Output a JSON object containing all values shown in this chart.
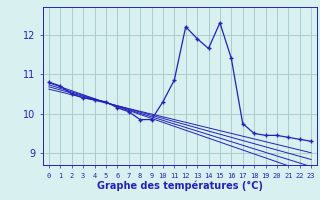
{
  "x": [
    0,
    1,
    2,
    3,
    4,
    5,
    6,
    7,
    8,
    9,
    10,
    11,
    12,
    13,
    14,
    15,
    16,
    17,
    18,
    19,
    20,
    21,
    22,
    23
  ],
  "main_line": [
    10.8,
    10.7,
    10.5,
    10.4,
    10.35,
    10.3,
    10.15,
    10.05,
    9.85,
    9.85,
    10.3,
    10.85,
    12.2,
    11.9,
    11.65,
    12.3,
    11.4,
    9.75,
    9.5,
    9.45,
    9.45,
    9.4,
    9.35,
    9.3
  ],
  "trend1": [
    10.78,
    10.68,
    10.58,
    10.48,
    10.38,
    10.28,
    10.18,
    10.08,
    9.98,
    9.88,
    9.78,
    9.68,
    9.58,
    9.48,
    9.38,
    9.28,
    9.18,
    9.08,
    8.98,
    8.88,
    8.78,
    8.68,
    8.58,
    8.48
  ],
  "trend2": [
    10.73,
    10.64,
    10.55,
    10.46,
    10.37,
    10.28,
    10.19,
    10.1,
    10.01,
    9.92,
    9.83,
    9.74,
    9.65,
    9.56,
    9.47,
    9.38,
    9.29,
    9.2,
    9.11,
    9.02,
    8.93,
    8.84,
    8.75,
    8.66
  ],
  "trend3": [
    10.68,
    10.6,
    10.52,
    10.44,
    10.36,
    10.28,
    10.2,
    10.12,
    10.04,
    9.96,
    9.88,
    9.8,
    9.72,
    9.64,
    9.56,
    9.48,
    9.4,
    9.32,
    9.24,
    9.16,
    9.08,
    9.0,
    8.92,
    8.84
  ],
  "trend4": [
    10.62,
    10.55,
    10.48,
    10.41,
    10.34,
    10.27,
    10.2,
    10.13,
    10.06,
    9.99,
    9.92,
    9.85,
    9.78,
    9.71,
    9.64,
    9.57,
    9.5,
    9.43,
    9.36,
    9.29,
    9.22,
    9.15,
    9.08,
    9.01
  ],
  "line_color": "#2222bb",
  "bg_color": "#d8f0f0",
  "grid_color": "#aacccc",
  "xlabel": "Graphe des températures (°C)",
  "yticks": [
    9,
    10,
    11,
    12
  ],
  "xticks": [
    0,
    1,
    2,
    3,
    4,
    5,
    6,
    7,
    8,
    9,
    10,
    11,
    12,
    13,
    14,
    15,
    16,
    17,
    18,
    19,
    20,
    21,
    22,
    23
  ],
  "ylim": [
    8.7,
    12.7
  ],
  "xlim": [
    -0.5,
    23.5
  ]
}
